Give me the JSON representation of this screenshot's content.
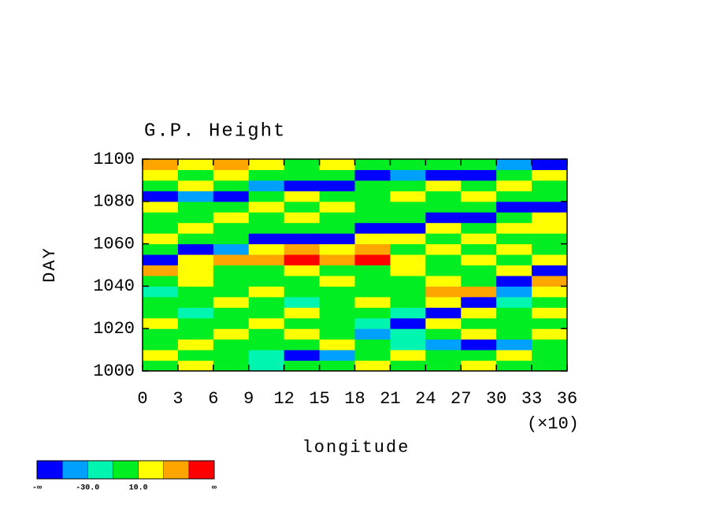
{
  "chart_data": {
    "type": "heatmap",
    "title": "G.P. Height",
    "xlabel": "longitude",
    "ylabel": "DAY",
    "x_scale_label": "(×10)",
    "xlim": [
      0,
      36
    ],
    "xticks": [
      0,
      3,
      6,
      9,
      12,
      15,
      18,
      21,
      24,
      27,
      30,
      33,
      36
    ],
    "ylim": [
      1000,
      1100
    ],
    "yticks": [
      1000,
      1020,
      1040,
      1060,
      1080,
      1100
    ],
    "x": [
      1.5,
      4.5,
      7.5,
      10.5,
      13.5,
      16.5,
      19.5,
      22.5,
      25.5,
      28.5,
      31.5,
      34.5
    ],
    "y": [
      1002.5,
      1007.5,
      1012.5,
      1017.5,
      1022.5,
      1027.5,
      1032.5,
      1037.5,
      1042.5,
      1047.5,
      1052.5,
      1057.5,
      1062.5,
      1067.5,
      1072.5,
      1077.5,
      1082.5,
      1087.5,
      1092.5,
      1097.5
    ],
    "values": [
      [
        0,
        20,
        0,
        -20,
        0,
        0,
        20,
        0,
        0,
        20,
        0,
        0
      ],
      [
        20,
        0,
        0,
        -20,
        -60,
        -40,
        0,
        20,
        0,
        0,
        20,
        0
      ],
      [
        0,
        20,
        0,
        0,
        0,
        20,
        0,
        -20,
        -40,
        -60,
        -40,
        0
      ],
      [
        0,
        0,
        20,
        0,
        20,
        0,
        -40,
        -20,
        0,
        20,
        0,
        20
      ],
      [
        20,
        0,
        0,
        20,
        0,
        0,
        -20,
        -60,
        20,
        0,
        0,
        0
      ],
      [
        0,
        -20,
        0,
        0,
        20,
        0,
        0,
        -20,
        -60,
        20,
        0,
        20
      ],
      [
        0,
        0,
        20,
        0,
        -20,
        0,
        20,
        0,
        20,
        -60,
        -20,
        0
      ],
      [
        -20,
        0,
        0,
        20,
        0,
        0,
        0,
        0,
        40,
        40,
        -40,
        20
      ],
      [
        0,
        20,
        0,
        0,
        0,
        20,
        0,
        0,
        20,
        0,
        -60,
        40
      ],
      [
        40,
        20,
        0,
        0,
        20,
        0,
        0,
        20,
        0,
        0,
        20,
        -60
      ],
      [
        -60,
        20,
        40,
        40,
        60,
        40,
        60,
        20,
        0,
        20,
        0,
        20
      ],
      [
        0,
        -60,
        -40,
        20,
        40,
        20,
        40,
        0,
        20,
        0,
        20,
        0
      ],
      [
        20,
        0,
        0,
        -60,
        -60,
        -60,
        20,
        20,
        0,
        20,
        0,
        0
      ],
      [
        0,
        20,
        0,
        0,
        0,
        0,
        -60,
        -60,
        20,
        0,
        20,
        20
      ],
      [
        0,
        0,
        20,
        0,
        20,
        0,
        0,
        0,
        -60,
        -60,
        0,
        20
      ],
      [
        20,
        0,
        0,
        20,
        0,
        20,
        0,
        0,
        0,
        0,
        -60,
        -60
      ],
      [
        -60,
        -40,
        -60,
        0,
        20,
        0,
        0,
        20,
        0,
        20,
        0,
        0
      ],
      [
        0,
        20,
        0,
        -40,
        -60,
        -60,
        0,
        0,
        20,
        0,
        20,
        0
      ],
      [
        20,
        0,
        20,
        0,
        0,
        0,
        -60,
        -40,
        -60,
        -60,
        0,
        20
      ],
      [
        40,
        20,
        40,
        20,
        0,
        20,
        0,
        0,
        0,
        0,
        -40,
        -60
      ]
    ],
    "colorbar": {
      "levels": [
        -50,
        -30,
        -10,
        10,
        30,
        50
      ],
      "colors": [
        "#0000ff",
        "#00a0ff",
        "#00f5b0",
        "#00ee22",
        "#ffff00",
        "#ffa500",
        "#ff0000"
      ],
      "end_labels": [
        "-∞",
        "∞"
      ],
      "level_labels": [
        {
          "value": -30,
          "label": "-30.0"
        },
        {
          "value": 10,
          "label": "10.0"
        }
      ]
    }
  }
}
